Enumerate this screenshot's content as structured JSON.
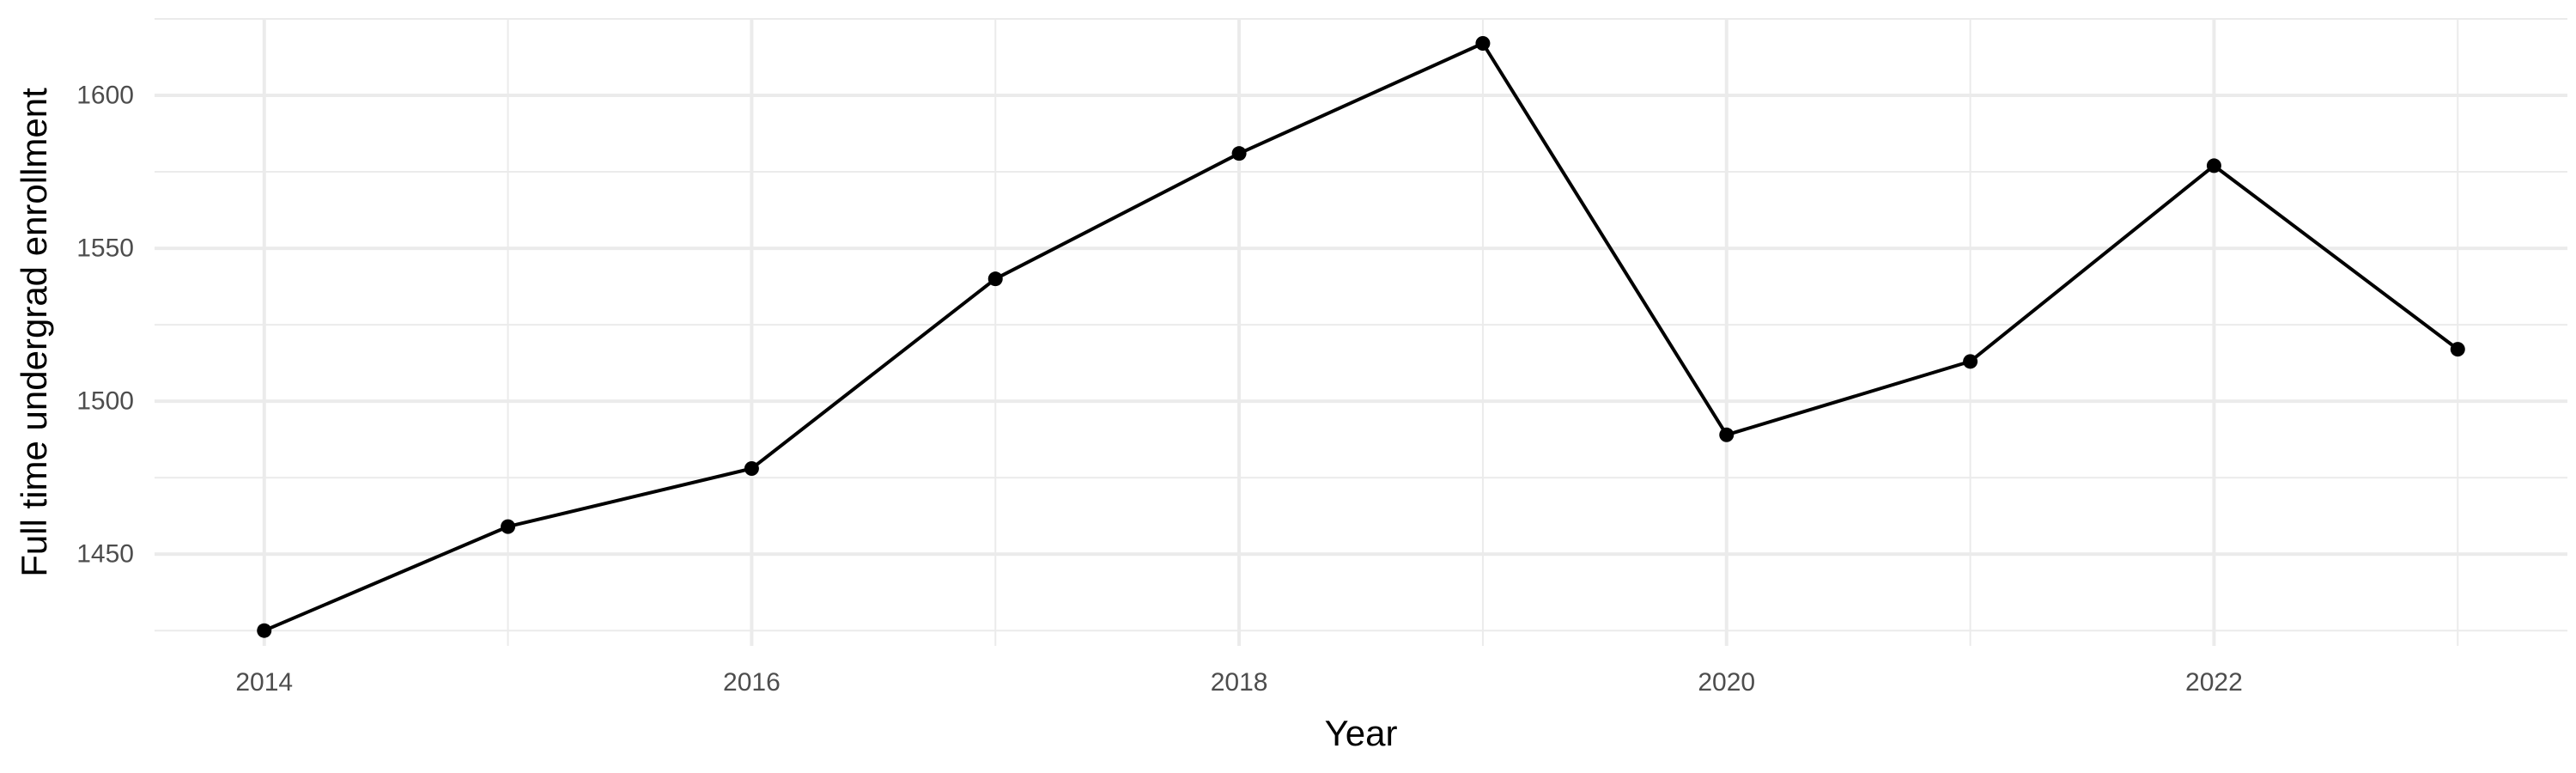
{
  "chart_data": {
    "type": "line",
    "title": "",
    "xlabel": "Year",
    "ylabel": "Full time undergrad enrollment",
    "x": [
      2014,
      2015,
      2016,
      2017,
      2018,
      2019,
      2020,
      2021,
      2022,
      2023
    ],
    "y": [
      1425,
      1459,
      1478,
      1540,
      1581,
      1617,
      1489,
      1513,
      1577,
      1517
    ],
    "xlim": [
      2013.55,
      2023.45
    ],
    "ylim": [
      1420,
      1625
    ],
    "x_ticks": [
      2014,
      2016,
      2018,
      2020,
      2022
    ],
    "y_ticks": [
      1450,
      1500,
      1550,
      1600
    ],
    "x_tick_labels": [
      "2014",
      "2016",
      "2018",
      "2020",
      "2022"
    ],
    "y_tick_labels": [
      "1450",
      "1500",
      "1550",
      "1600"
    ],
    "grid": true,
    "legend": "none",
    "colors": {
      "line": "#000000",
      "point": "#000000",
      "grid": "#ebebeb",
      "tick_text": "#4d4d4d"
    }
  }
}
